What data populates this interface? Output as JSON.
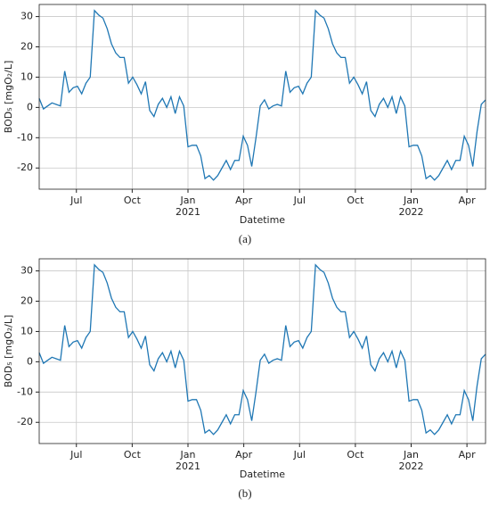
{
  "chart_data": [
    {
      "type": "line",
      "caption": "(a)",
      "xlabel": "Datetime",
      "ylabel": "BOD₅ [mgO₂/L]",
      "color": "#1f77b4",
      "grid": true,
      "xlim": [
        "2020-05",
        "2022-05"
      ],
      "xticks": [
        {
          "value": "2020-07",
          "label": "Jul"
        },
        {
          "value": "2020-10",
          "label": "Oct"
        },
        {
          "value": "2021-01",
          "label": "Jan\n2021"
        },
        {
          "value": "2021-04",
          "label": "Apr"
        },
        {
          "value": "2021-07",
          "label": "Jul"
        },
        {
          "value": "2021-10",
          "label": "Oct"
        },
        {
          "value": "2022-01",
          "label": "Jan\n2022"
        },
        {
          "value": "2022-04",
          "label": "Apr"
        }
      ],
      "ylim": [
        -27,
        34
      ],
      "yticks": [
        -20,
        -10,
        0,
        10,
        20,
        30
      ],
      "values": [
        3,
        -0.5,
        0.5,
        1.5,
        1,
        0.5,
        12,
        5,
        6.5,
        7,
        4.5,
        8,
        10,
        32,
        30.5,
        29.5,
        26,
        21,
        18,
        16.5,
        16.5,
        8,
        10,
        7.5,
        4.5,
        8.5,
        -1,
        -3,
        1,
        3,
        0,
        3.5,
        -2,
        3.5,
        0.5,
        -13,
        -12.5,
        -12.5,
        -16,
        -23.5,
        -22.5,
        -24,
        -22.5,
        -20,
        -17.5,
        -20.5,
        -17.5,
        -17.5,
        -9.5,
        -12.5,
        -19.5,
        -10,
        0.5,
        2.5,
        -0.5,
        0.5,
        1,
        0.5,
        12,
        5,
        6.5,
        7,
        4.5,
        8,
        10,
        32,
        30.5,
        29.5,
        26,
        21,
        18,
        16.5,
        16.5,
        8,
        10,
        7.5,
        4.5,
        8.5,
        -1,
        -3,
        1,
        3,
        0,
        3.5,
        -2,
        3.5,
        0.5,
        -13,
        -12.5,
        -12.5,
        -16,
        -23.5,
        -22.5,
        -24,
        -22.5,
        -20,
        -17.5,
        -20.5,
        -17.5,
        -17.5,
        -9.5,
        -12.5,
        -19.5,
        -8,
        1,
        2.5
      ]
    },
    {
      "type": "line",
      "caption": "(b)",
      "xlabel": "Datetime",
      "ylabel": "BOD₅ [mgO₂/L]",
      "color": "#1f77b4",
      "grid": true,
      "xlim": [
        "2020-05",
        "2022-05"
      ],
      "xticks": [
        {
          "value": "2020-07",
          "label": "Jul"
        },
        {
          "value": "2020-10",
          "label": "Oct"
        },
        {
          "value": "2021-01",
          "label": "Jan\n2021"
        },
        {
          "value": "2021-04",
          "label": "Apr"
        },
        {
          "value": "2021-07",
          "label": "Jul"
        },
        {
          "value": "2021-10",
          "label": "Oct"
        },
        {
          "value": "2022-01",
          "label": "Jan\n2022"
        },
        {
          "value": "2022-04",
          "label": "Apr"
        }
      ],
      "ylim": [
        -27,
        34
      ],
      "yticks": [
        -20,
        -10,
        0,
        10,
        20,
        30
      ],
      "values": [
        3,
        -0.5,
        0.5,
        1.5,
        1,
        0.5,
        12,
        5,
        6.5,
        7,
        4.5,
        8,
        10,
        32,
        30.5,
        29.5,
        26,
        21,
        18,
        16.5,
        16.5,
        8,
        10,
        7.5,
        4.5,
        8.5,
        -1,
        -3,
        1,
        3,
        0,
        3.5,
        -2,
        3.5,
        0.5,
        -13,
        -12.5,
        -12.5,
        -16,
        -23.5,
        -22.5,
        -24,
        -22.5,
        -20,
        -17.5,
        -20.5,
        -17.5,
        -17.5,
        -9.5,
        -12.5,
        -19.5,
        -10,
        0.5,
        2.5,
        -0.5,
        0.5,
        1,
        0.5,
        12,
        5,
        6.5,
        7,
        4.5,
        8,
        10,
        32,
        30.5,
        29.5,
        26,
        21,
        18,
        16.5,
        16.5,
        8,
        10,
        7.5,
        4.5,
        8.5,
        -1,
        -3,
        1,
        3,
        0,
        3.5,
        -2,
        3.5,
        0.5,
        -13,
        -12.5,
        -12.5,
        -16,
        -23.5,
        -22.5,
        -24,
        -22.5,
        -20,
        -17.5,
        -20.5,
        -17.5,
        -17.5,
        -9.5,
        -12.5,
        -19.5,
        -8,
        1,
        2.5
      ]
    }
  ]
}
